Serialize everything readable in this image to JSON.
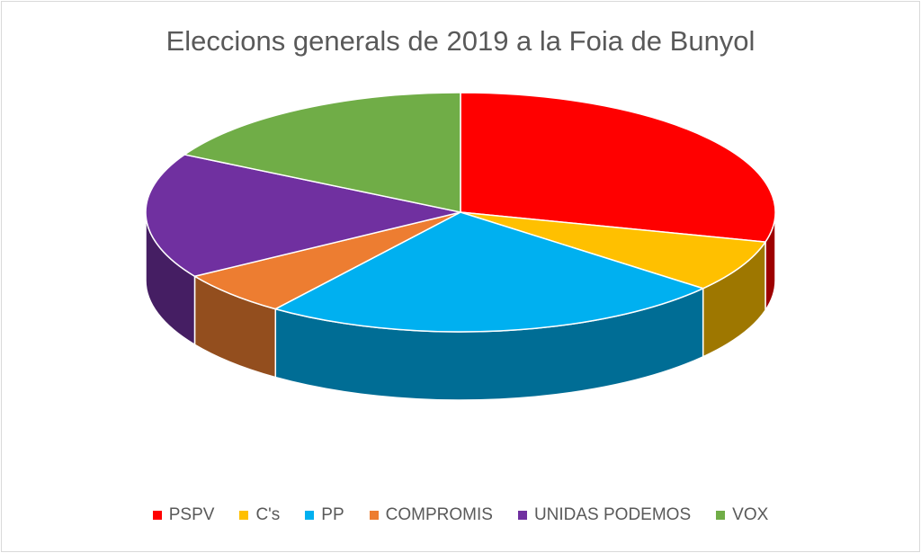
{
  "chart_data": {
    "type": "pie",
    "title": "Eleccions generals de 2019 a la Foia de Bunyol",
    "categories": [
      "PSPV",
      "C's",
      "PP",
      "COMPROMIS",
      "UNIDAS PODEMOS",
      "VOX"
    ],
    "values": [
      29,
      7,
      24,
      6,
      17,
      17
    ],
    "colors": [
      "#ff0000",
      "#ffc000",
      "#00b0f0",
      "#ed7d31",
      "#7030a0",
      "#70ad47"
    ],
    "legend_position": "bottom",
    "style": "3d"
  }
}
